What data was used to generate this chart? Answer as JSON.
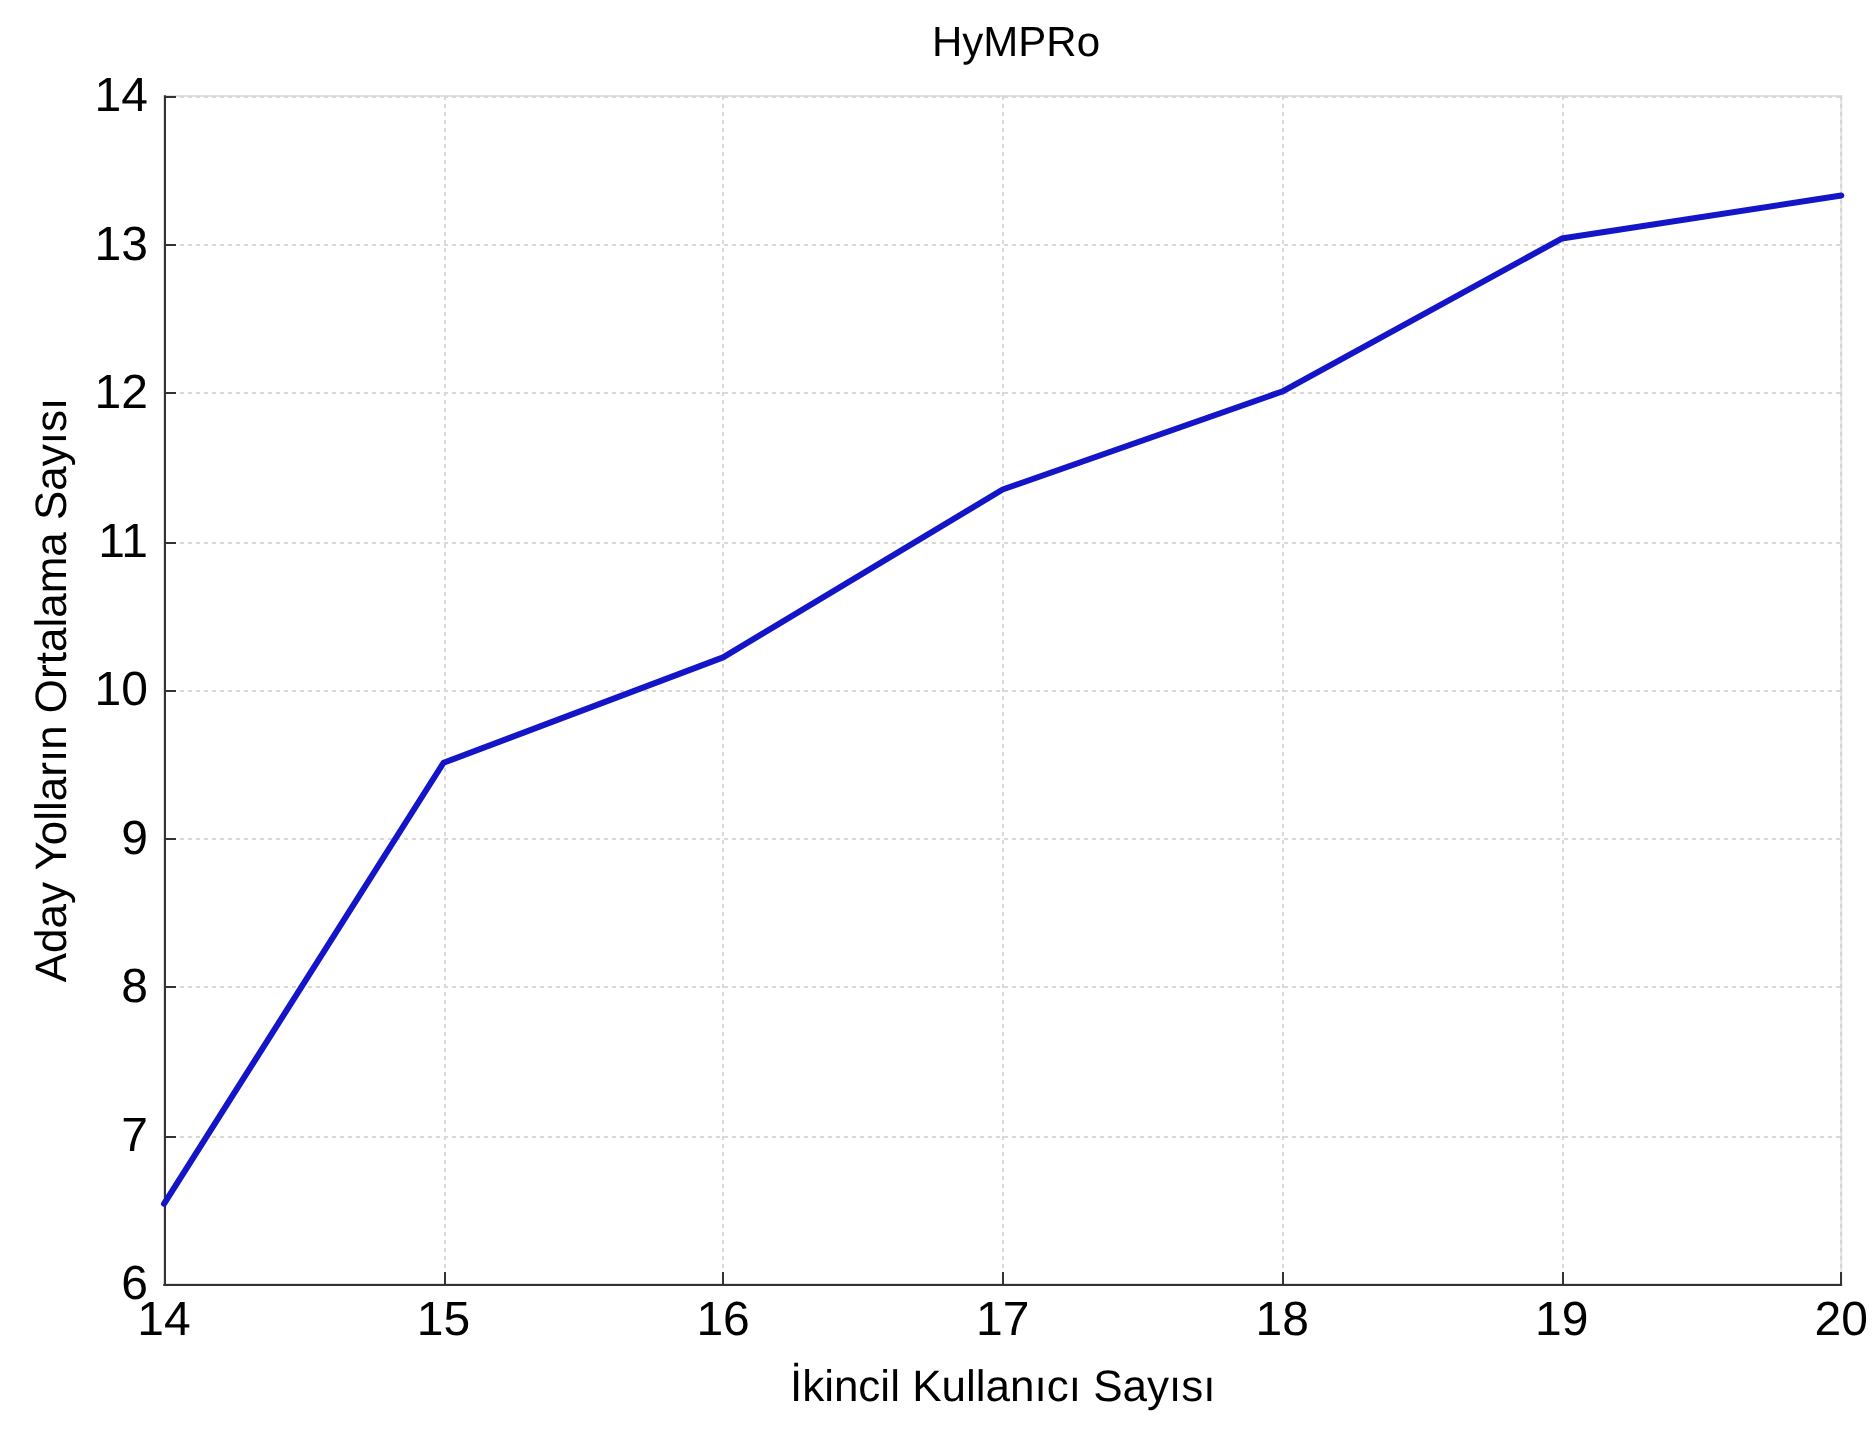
{
  "chart_data": {
    "type": "line",
    "title": "HyMPRo",
    "xlabel": "İkincil Kullanıcı Sayısı",
    "ylabel": "Aday Yolların Ortalama Sayısı",
    "x": [
      14,
      15,
      16,
      17,
      18,
      19,
      20
    ],
    "values": [
      6.54,
      9.51,
      10.22,
      11.35,
      12.01,
      13.04,
      13.33
    ],
    "color": "#1414c8",
    "xlim": [
      14,
      20
    ],
    "xticks": [
      14,
      15,
      16,
      17,
      18,
      19,
      20
    ],
    "ylim": [
      6,
      14
    ],
    "yticks": [
      6,
      7,
      8,
      9,
      10,
      11,
      12,
      13,
      14
    ],
    "grid": true,
    "line_style": "solid"
  }
}
